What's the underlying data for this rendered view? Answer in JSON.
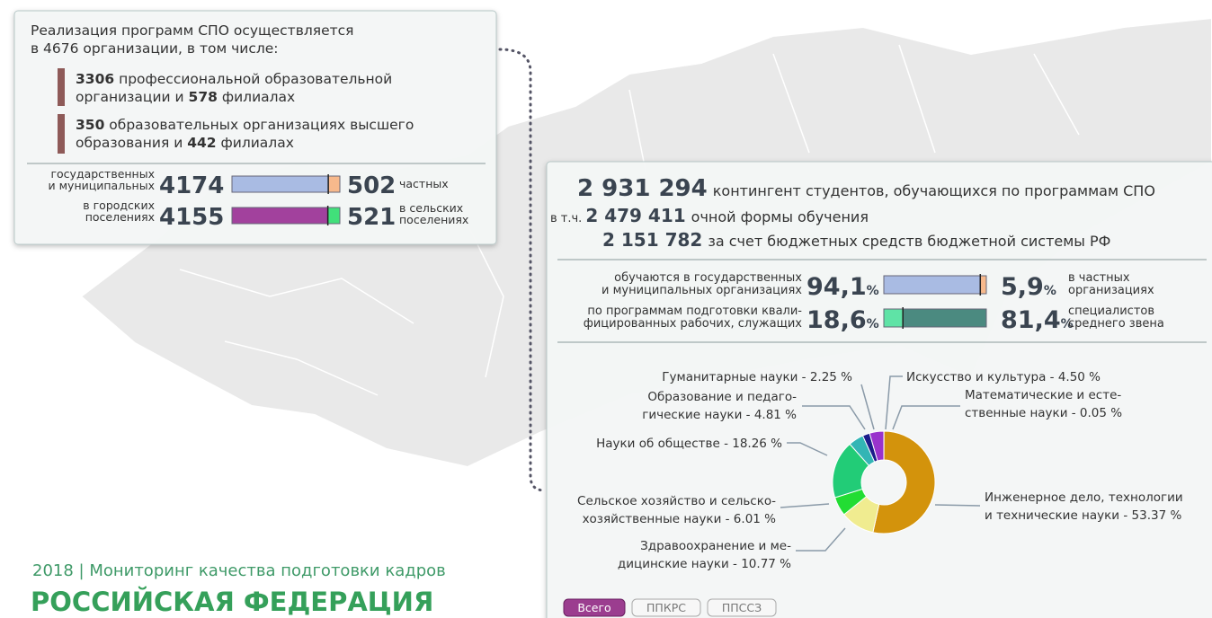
{
  "left_panel": {
    "intro": [
      "Реализация программ СПО осуществляется",
      "в 4676 организации, в том числе:"
    ],
    "items": [
      {
        "lines": [
          [
            {
              "text": "3306",
              "bold": true
            },
            {
              "text": " профессиональной образовательной"
            }
          ],
          [
            {
              "text": "организации и "
            },
            {
              "text": "578",
              "bold": true
            },
            {
              "text": " филиалах"
            }
          ]
        ]
      },
      {
        "lines": [
          [
            {
              "text": "350",
              "bold": true
            },
            {
              "text": " образовательных организациях высшего"
            }
          ],
          [
            {
              "text": "образования и "
            },
            {
              "text": "442",
              "bold": true
            },
            {
              "text": " филиалах"
            }
          ]
        ]
      }
    ],
    "rows": [
      {
        "left_label": [
          "государственных",
          "и муниципальных"
        ],
        "left_value": 4174,
        "right_value": 502,
        "right_label": [
          "частных"
        ],
        "left_color": "#a9bbe3",
        "right_color": "#f7b98c"
      },
      {
        "left_label": [
          "в городских",
          "поселениях"
        ],
        "left_value": 4155,
        "right_value": 521,
        "right_label": [
          "в сельских",
          "поселениях"
        ],
        "left_color": "#a2419d",
        "right_color": "#41e07a"
      }
    ]
  },
  "right_panel": {
    "totals": [
      {
        "value": "2 931 294",
        "text": "контингент студентов, обучающихся по программам СПО"
      },
      {
        "prefix": "в т.ч.",
        "value": "2 479 411",
        "text": "очной формы обучения"
      },
      {
        "value": "2 151 782",
        "text": "за счет бюджетных средств бюджетной системы РФ"
      }
    ],
    "shares": [
      {
        "left_label": [
          "обучаются в государственных",
          "и муниципальных организациях"
        ],
        "left_value": {
          "value": 94.1,
          "label": "94,1"
        },
        "unit": "%",
        "right_value": {
          "value": 5.9,
          "label": "5,9"
        },
        "right_label": [
          "в частных",
          "организациях"
        ],
        "left_color": "#a9bbe3",
        "right_color": "#f7b98c"
      },
      {
        "left_label": [
          "по программам подготовки квали-",
          "фицированных рабочих, служащих"
        ],
        "left_value": {
          "value": 18.6,
          "label": "18,6"
        },
        "unit": "%",
        "right_value": {
          "value": 81.4,
          "label": "81,4"
        },
        "right_label": [
          "специалистов",
          "среднего звена"
        ],
        "left_color": "#5fe3a6",
        "right_color": "#4b8a80"
      }
    ],
    "buttons": [
      {
        "label": "Всего",
        "active": true
      },
      {
        "label": "ППКРС",
        "active": false
      },
      {
        "label": "ППССЗ",
        "active": false
      }
    ]
  },
  "chart_data": {
    "type": "pie",
    "donut": true,
    "labels": [
      [
        "Математические и есте-",
        "ственные науки - 0.05 %"
      ],
      [
        "Инженерное дело, технологии",
        "и технические науки - 53.37 %"
      ],
      [
        "Здравоохранение и ме-",
        "дицинские науки - 10.77 %"
      ],
      [
        "Сельское хозяйство и сельско-",
        "хозяйственные науки - 6.01 %"
      ],
      [
        "Науки об обществе - 18.26 %"
      ],
      [
        "Образование и педаго-",
        "гические науки - 4.81 %"
      ],
      [
        "Гуманитарные науки - 2.25 %"
      ],
      [
        "Искусство и культура - 4.50 %"
      ]
    ],
    "values": [
      0.05,
      53.37,
      10.77,
      6.01,
      18.26,
      4.81,
      2.25,
      4.5
    ],
    "colors": [
      "#d9342b",
      "#d3930c",
      "#f0ec90",
      "#22dd33",
      "#22cc77",
      "#33b5b5",
      "#1c1c8a",
      "#9933cc"
    ]
  },
  "footer": {
    "subtitle": "2018 | Мониторинг качества подготовки кадров",
    "title": "РОССИЙСКАЯ ФЕДЕРАЦИЯ"
  }
}
